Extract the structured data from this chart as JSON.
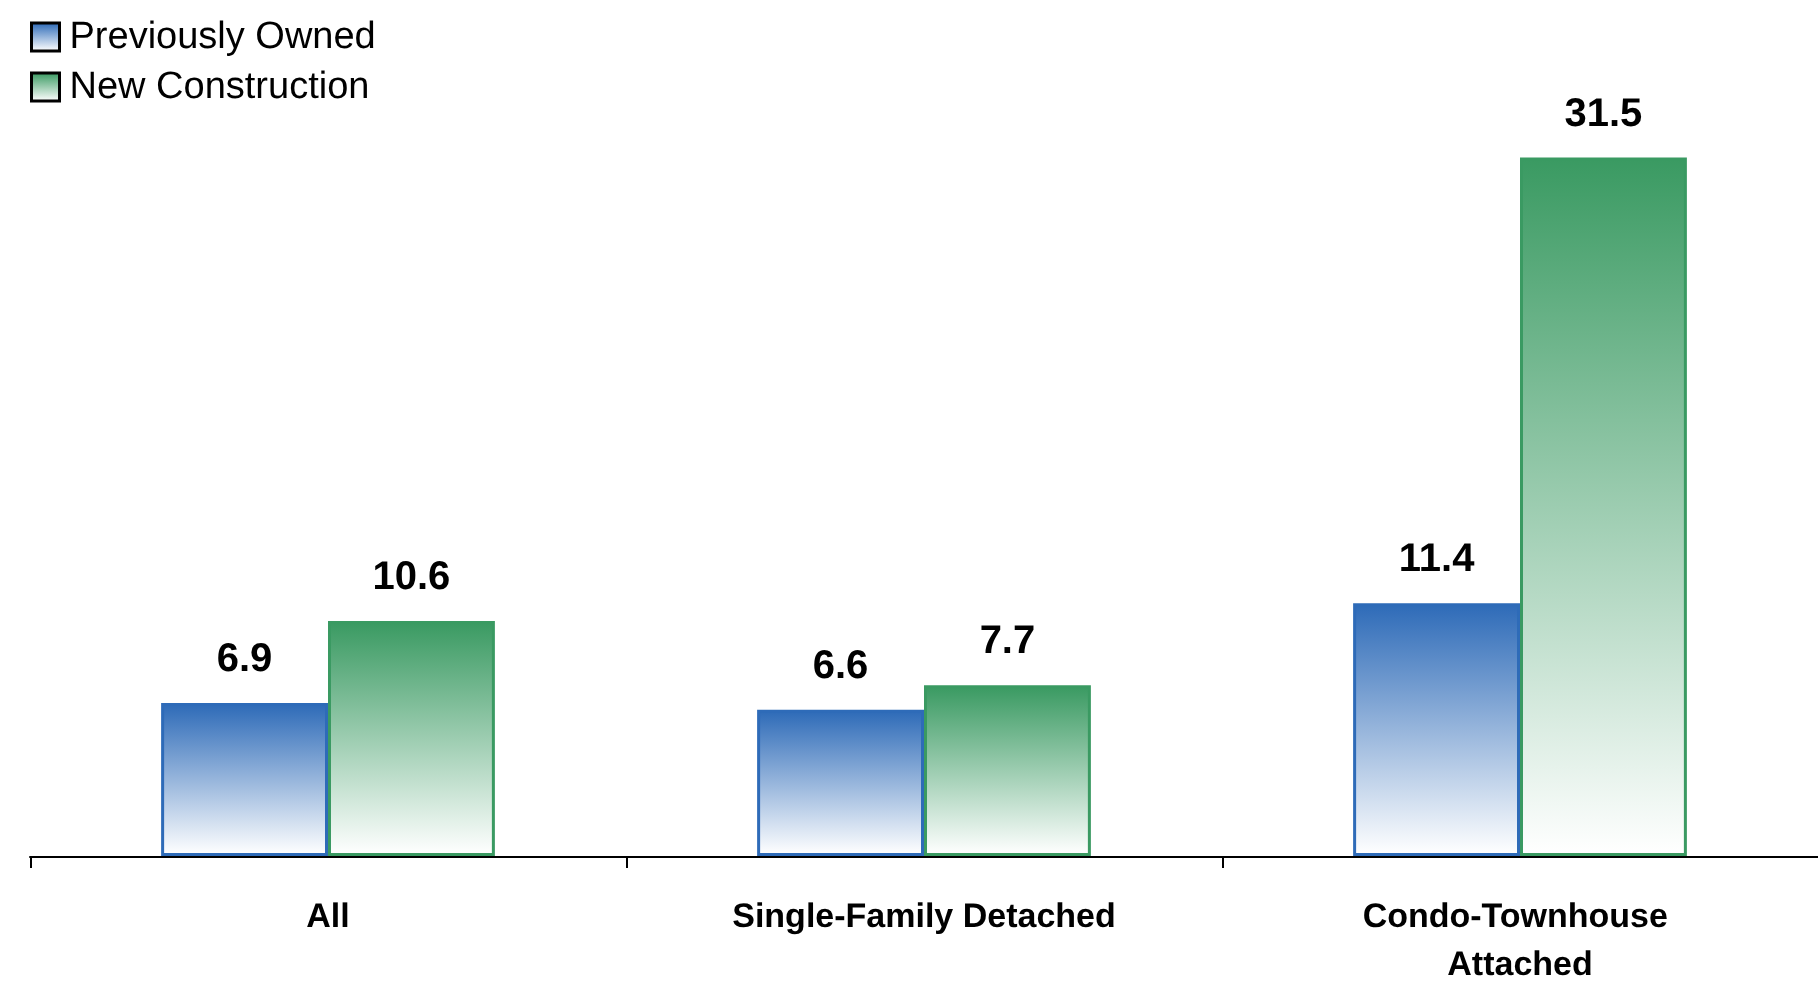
{
  "chart_data": {
    "type": "bar",
    "categories": [
      "All",
      "Single-Family Detached",
      "Condo-Townhouse Attached"
    ],
    "series": [
      {
        "name": "Previously Owned",
        "color": "#2e6bb8",
        "values": [
          6.9,
          6.6,
          11.4
        ]
      },
      {
        "name": "New Construction",
        "color": "#3a9a62",
        "values": [
          10.6,
          7.7,
          31.5
        ]
      }
    ],
    "data_labels": true,
    "legend": "top left"
  }
}
